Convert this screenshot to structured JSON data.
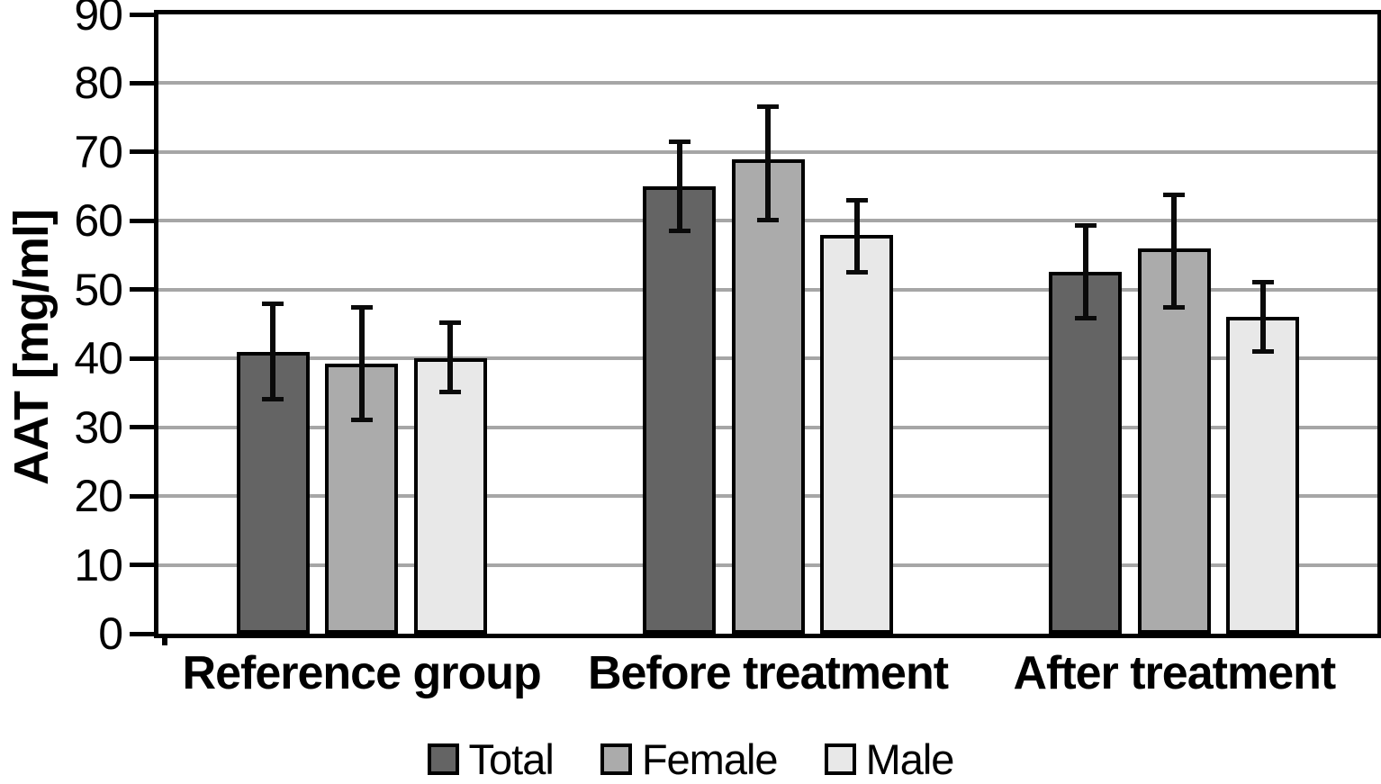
{
  "figure": {
    "background": "#ffffff"
  },
  "chart_data": {
    "type": "bar",
    "title": "",
    "xlabel": "",
    "ylabel": "AAT [mg/ml]",
    "ylim": [
      0,
      90
    ],
    "ytick_step": 10,
    "ytick_labels": [
      "0",
      "10",
      "20",
      "30",
      "40",
      "50",
      "60",
      "70",
      "80",
      "90"
    ],
    "grid": "horizontal",
    "legend_position": "bottom",
    "categories": [
      "Reference group",
      "Before treatment",
      "After treatment"
    ],
    "series": [
      {
        "name": "Total",
        "color": "#646464",
        "values": [
          41,
          65,
          52.6
        ],
        "error_low": [
          34,
          58.5,
          45.8
        ],
        "error_high": [
          48,
          71.5,
          59.4
        ]
      },
      {
        "name": "Female",
        "color": "#ABABAB",
        "values": [
          39.2,
          69,
          56
        ],
        "error_low": [
          31,
          60,
          47.4
        ],
        "error_high": [
          47.5,
          76.6,
          63.9
        ]
      },
      {
        "name": "Male",
        "color": "#E8E8E8",
        "values": [
          40,
          57.9,
          46.1
        ],
        "error_low": [
          35,
          52.5,
          41
        ],
        "error_high": [
          45.3,
          63,
          51.2
        ]
      }
    ],
    "colors": {
      "gridline": "#A6A6A6",
      "axis": "#000000",
      "bar_border": "#000000",
      "error_bar": "#0A0A0A",
      "text": "#000000"
    }
  }
}
